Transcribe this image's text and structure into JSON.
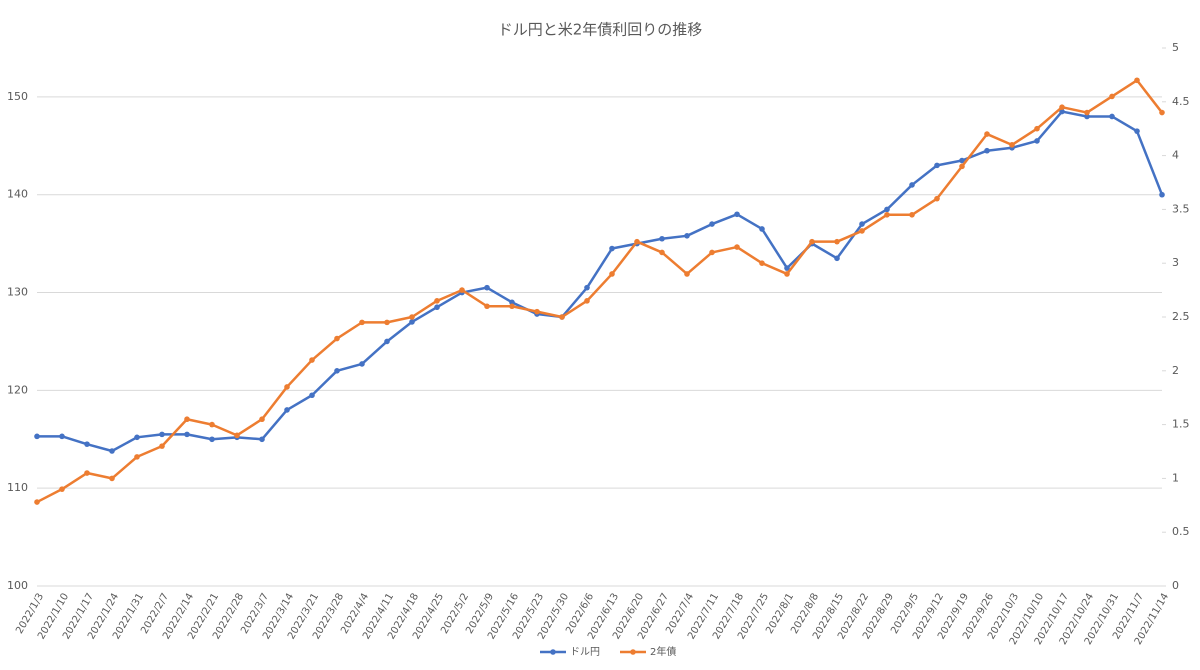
{
  "chart_data": {
    "type": "line",
    "title": "ドル円と米2年債利回りの推移",
    "categories": [
      "2022/1/3",
      "2022/1/10",
      "2022/1/17",
      "2022/1/24",
      "2022/1/31",
      "2022/2/7",
      "2022/2/14",
      "2022/2/21",
      "2022/2/28",
      "2022/3/7",
      "2022/3/14",
      "2022/3/21",
      "2022/3/28",
      "2022/4/4",
      "2022/4/11",
      "2022/4/18",
      "2022/4/25",
      "2022/5/2",
      "2022/5/9",
      "2022/5/16",
      "2022/5/23",
      "2022/5/30",
      "2022/6/6",
      "2022/6/13",
      "2022/6/20",
      "2022/6/27",
      "2022/7/4",
      "2022/7/11",
      "2022/7/18",
      "2022/7/25",
      "2022/8/1",
      "2022/8/8",
      "2022/8/15",
      "2022/8/22",
      "2022/8/29",
      "2022/9/5",
      "2022/9/12",
      "2022/9/19",
      "2022/9/26",
      "2022/10/3",
      "2022/10/10",
      "2022/10/17",
      "2022/10/24",
      "2022/10/31",
      "2022/11/7",
      "2022/11/14"
    ],
    "series": [
      {
        "name": "ドル円",
        "color": "#4472c4",
        "axis": "y",
        "values": [
          115.3,
          115.3,
          114.5,
          113.8,
          115.2,
          115.5,
          115.5,
          115.0,
          115.2,
          115.0,
          118.0,
          119.5,
          122.0,
          122.7,
          125.0,
          127.0,
          128.5,
          130.0,
          130.5,
          129.0,
          127.8,
          127.5,
          130.5,
          134.5,
          135.0,
          135.5,
          135.8,
          137.0,
          138.0,
          136.5,
          132.5,
          135.0,
          133.5,
          137.0,
          138.5,
          141.0,
          143.0,
          143.5,
          144.5,
          144.8,
          145.5,
          148.5,
          148.0,
          148.0,
          146.5,
          140.0
        ]
      },
      {
        "name": "2年債",
        "color": "#ed7d31",
        "axis": "y2",
        "values": [
          0.78,
          0.9,
          1.05,
          1.0,
          1.2,
          1.3,
          1.55,
          1.5,
          1.4,
          1.55,
          1.85,
          2.1,
          2.3,
          2.45,
          2.45,
          2.5,
          2.65,
          2.75,
          2.6,
          2.6,
          2.55,
          2.5,
          2.65,
          2.9,
          3.2,
          3.1,
          2.9,
          3.1,
          3.15,
          3.0,
          2.9,
          3.2,
          3.2,
          3.3,
          3.45,
          3.45,
          3.6,
          3.9,
          4.2,
          4.1,
          4.25,
          4.45,
          4.4,
          4.55,
          4.7,
          4.4
        ]
      }
    ],
    "ylim": [
      100,
      155
    ],
    "yticks": [
      100,
      110,
      120,
      130,
      140,
      150
    ],
    "y2lim": [
      0,
      5
    ],
    "y2ticks": [
      0,
      0.5,
      1,
      1.5,
      2,
      2.5,
      3,
      3.5,
      4,
      4.5,
      5
    ],
    "grid": true,
    "legend": "bottom"
  }
}
